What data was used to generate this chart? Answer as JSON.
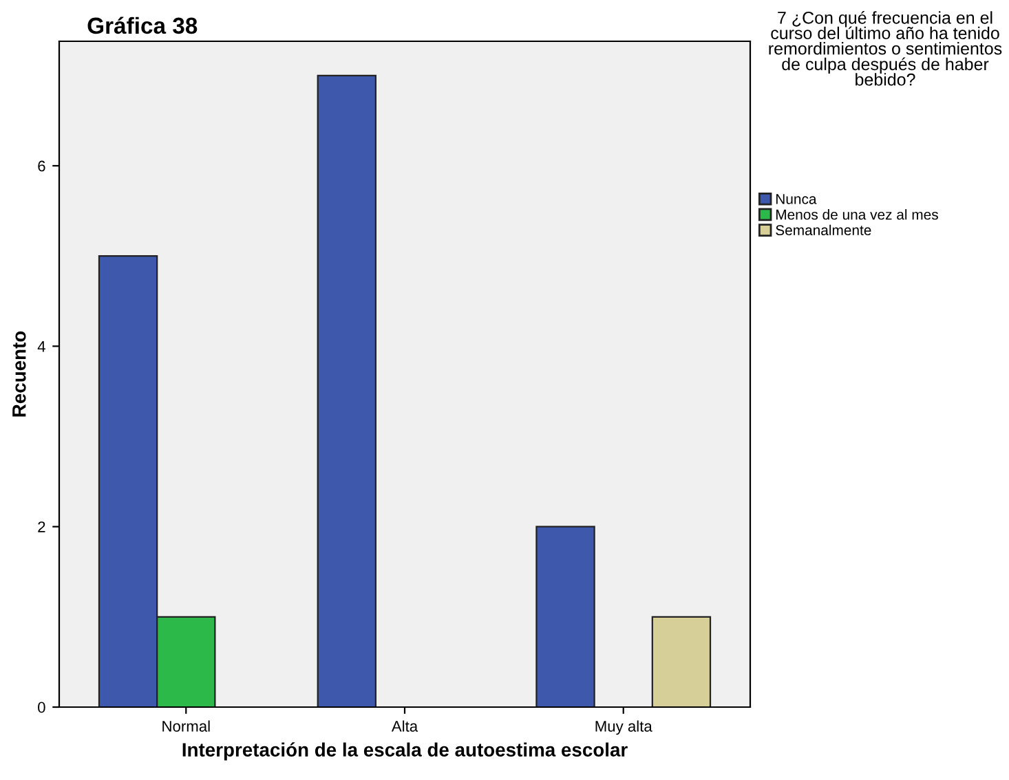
{
  "chart_data": {
    "type": "bar",
    "title": "Gráfica 38",
    "xlabel": "Interpretación de la escala de autoestima escolar",
    "ylabel": "Recuento",
    "legend_title": "7 ¿Con qué frecuencia en el curso del último año ha tenido remordimientos o sentimientos de culpa después de haber bebido?",
    "categories": [
      "Normal",
      "Alta",
      "Muy alta"
    ],
    "series": [
      {
        "name": "Nunca",
        "color": "#3e58ac",
        "values": [
          5,
          7,
          2
        ]
      },
      {
        "name": "Menos de una vez al mes",
        "color": "#2db84a",
        "values": [
          1,
          null,
          null
        ]
      },
      {
        "name": "Semanalmente",
        "color": "#d6cf98",
        "values": [
          null,
          null,
          1
        ]
      }
    ],
    "ylim": [
      0,
      7.38
    ],
    "yticks": [
      0,
      2,
      4,
      6
    ],
    "grid": false,
    "legend": "right"
  }
}
